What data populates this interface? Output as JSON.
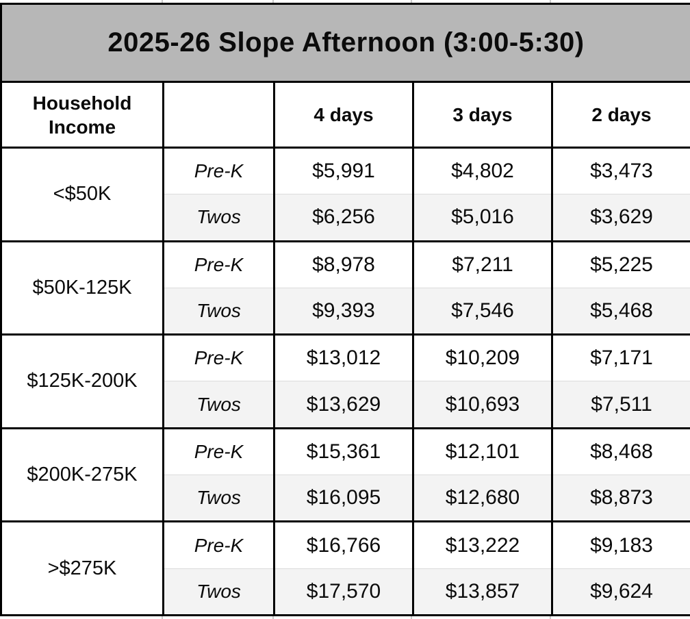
{
  "title": "2025-26 Slope Afternoon (3:00-5:30)",
  "table": {
    "header": {
      "income": "Household Income",
      "program": "",
      "days": [
        "4 days",
        "3 days",
        "2 days"
      ]
    },
    "groups": [
      {
        "income": "<$50K",
        "rows": [
          {
            "label": "Pre-K",
            "prices": [
              "$5,991",
              "$4,802",
              "$3,473"
            ]
          },
          {
            "label": "Twos",
            "prices": [
              "$6,256",
              "$5,016",
              "$3,629"
            ]
          }
        ]
      },
      {
        "income": "$50K-125K",
        "rows": [
          {
            "label": "Pre-K",
            "prices": [
              "$8,978",
              "$7,211",
              "$5,225"
            ]
          },
          {
            "label": "Twos",
            "prices": [
              "$9,393",
              "$7,546",
              "$5,468"
            ]
          }
        ]
      },
      {
        "income": "$125K-200K",
        "rows": [
          {
            "label": "Pre-K",
            "prices": [
              "$13,012",
              "$10,209",
              "$7,171"
            ]
          },
          {
            "label": "Twos",
            "prices": [
              "$13,629",
              "$10,693",
              "$7,511"
            ]
          }
        ]
      },
      {
        "income": "$200K-275K",
        "rows": [
          {
            "label": "Pre-K",
            "prices": [
              "$15,361",
              "$12,101",
              "$8,468"
            ]
          },
          {
            "label": "Twos",
            "prices": [
              "$16,095",
              "$12,680",
              "$8,873"
            ]
          }
        ]
      },
      {
        "income": ">$275K",
        "rows": [
          {
            "label": "Pre-K",
            "prices": [
              "$16,766",
              "$13,222",
              "$9,183"
            ]
          },
          {
            "label": "Twos",
            "prices": [
              "$17,570",
              "$13,857",
              "$9,624"
            ]
          }
        ]
      }
    ]
  },
  "colors": {
    "title_bg": "#b7b7b7",
    "alt_row_bg": "#f3f3f3",
    "border": "#000000",
    "divider": "#dcdcdc"
  }
}
